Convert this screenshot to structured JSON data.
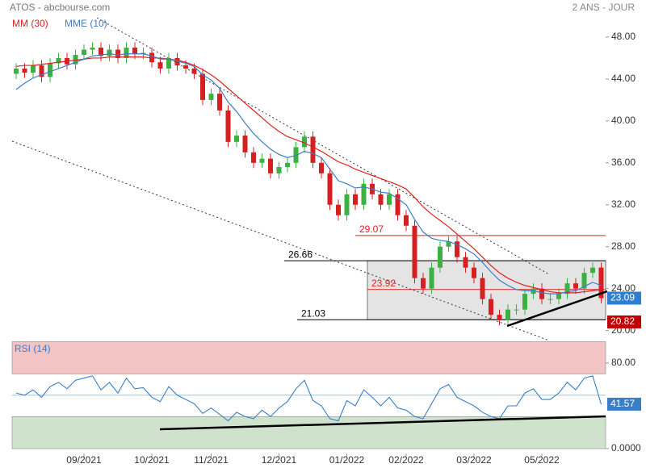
{
  "chart_data": [
    {
      "type": "candlestick",
      "title": "ATOS - abcbourse.com",
      "subtitle": "2 ANS - JOUR",
      "categories": [
        null,
        null,
        null,
        null,
        null,
        null,
        null,
        null,
        "09/2021",
        null,
        null,
        null,
        null,
        null,
        null,
        null,
        "10/2021",
        null,
        null,
        null,
        null,
        null,
        null,
        "11/2021",
        null,
        null,
        null,
        null,
        null,
        null,
        null,
        "12/2021",
        null,
        null,
        null,
        null,
        null,
        null,
        null,
        "01/2022",
        null,
        null,
        null,
        null,
        null,
        null,
        "02/2022",
        null,
        null,
        null,
        null,
        null,
        null,
        null,
        "03/2022",
        null,
        null,
        null,
        null,
        null,
        null,
        null,
        "05/2022",
        null,
        null,
        null,
        null,
        null,
        null,
        null
      ],
      "open": [
        44.5,
        45,
        44.6,
        45.3,
        44.2,
        45.5,
        46,
        45.4,
        46.3,
        46.8,
        47,
        46.2,
        46.8,
        46,
        47,
        46.4,
        46.5,
        45.6,
        45,
        46,
        45.3,
        45,
        44.5,
        42,
        42.6,
        41,
        38,
        38.6,
        37,
        36,
        36.4,
        35,
        35.6,
        36,
        37.5,
        38.5,
        36,
        35,
        32,
        31,
        33,
        32,
        34,
        33,
        32,
        33,
        31,
        30,
        25,
        24,
        26,
        28,
        28.5,
        27,
        26,
        25,
        23,
        21.5,
        21,
        22,
        22,
        23.5,
        24,
        23,
        23,
        23.5,
        24.5,
        24,
        25.5,
        26
      ],
      "high": [
        45.5,
        45.5,
        45.8,
        45.8,
        46,
        46.5,
        46.5,
        46.8,
        47.3,
        47.5,
        47.5,
        47.3,
        47.3,
        47.5,
        47.5,
        47,
        47,
        46.1,
        46.5,
        46.5,
        45.8,
        45.5,
        45,
        43.1,
        43.1,
        41.5,
        39.1,
        39.1,
        37.5,
        36.9,
        36.9,
        36.1,
        36.5,
        38,
        39,
        39,
        36.5,
        35.5,
        32.5,
        33.5,
        33.5,
        34.5,
        34.5,
        33.5,
        33.5,
        33.5,
        31.5,
        30.5,
        25.5,
        26.5,
        28.5,
        29,
        29,
        27.5,
        26.5,
        25.5,
        23.5,
        22,
        22.5,
        22.5,
        24,
        24.5,
        24.5,
        23.5,
        24,
        25,
        25,
        26,
        26.5,
        26.5
      ],
      "low": [
        44,
        44.1,
        44.1,
        43.7,
        43.7,
        45,
        44.9,
        44.9,
        45.8,
        46.3,
        45.7,
        45.7,
        45.5,
        45.5,
        45.9,
        45.9,
        45.1,
        44.5,
        44.5,
        44.8,
        44.5,
        44,
        41.5,
        41.5,
        40.5,
        37.5,
        37.5,
        36.5,
        35.5,
        35.5,
        34.5,
        34.5,
        35.1,
        35.5,
        37,
        35.5,
        34.5,
        31.5,
        30.5,
        30.5,
        31.5,
        31.5,
        32.5,
        31.5,
        31.5,
        30.5,
        29.5,
        24.5,
        23.5,
        23.5,
        25.5,
        27.5,
        26.5,
        25.5,
        24.5,
        22.5,
        21,
        20.5,
        20.5,
        21.5,
        21.5,
        23,
        22.5,
        22.5,
        22.5,
        23,
        23.5,
        23.5,
        25,
        22.59
      ],
      "close": [
        45,
        44.6,
        45.3,
        44.2,
        45.5,
        46,
        45.4,
        46.3,
        46.8,
        47,
        46.2,
        46.8,
        46,
        47,
        46.4,
        46.5,
        45.6,
        45,
        46,
        45.3,
        45,
        44.5,
        42,
        42.6,
        41,
        38,
        38.6,
        37,
        36,
        36.4,
        35,
        35.6,
        36,
        37.5,
        38.5,
        36,
        35,
        32,
        31,
        33,
        32,
        34,
        33,
        32,
        33,
        31,
        30,
        25,
        24,
        26,
        28,
        28.5,
        27,
        26,
        25,
        23,
        21.5,
        21,
        22,
        22,
        23.5,
        24,
        23,
        23,
        23.5,
        24.5,
        24,
        25.5,
        26,
        23.09
      ],
      "up_color": "#3cb043",
      "down_color": "#d42020",
      "series": [
        {
          "name": "MM (30)",
          "color": "#e02020",
          "values": [
            45.2,
            45.3,
            45.3,
            45.4,
            45.5,
            45.6,
            45.7,
            45.8,
            45.9,
            46,
            46,
            46.1,
            46.1,
            46.1,
            46.1,
            46.1,
            46,
            46,
            45.9,
            45.8,
            45.6,
            45.3,
            44.9,
            44.4,
            43.8,
            43.1,
            42.4,
            41.7,
            41,
            40.3,
            39.6,
            39,
            38.5,
            38.2,
            37.9,
            37.5,
            37.1,
            36.6,
            36.1,
            35.8,
            35.4,
            35.1,
            34.8,
            34.5,
            34.2,
            33.9,
            33.5,
            32.7,
            31.8,
            31.1,
            30.5,
            29.9,
            29.2,
            28.5,
            27.8,
            27,
            26.2,
            25.5,
            25,
            24.6,
            24.3,
            24.1,
            23.9,
            23.7,
            23.6,
            23.6,
            23.6,
            23.7,
            23.8,
            23.9
          ]
        },
        {
          "name": "MME (10)",
          "color": "#3a7ec8",
          "values": [
            43,
            43.6,
            44.1,
            44.4,
            44.7,
            45,
            45.3,
            45.6,
            45.9,
            46.2,
            46.3,
            46.4,
            46.3,
            46.4,
            46.4,
            46.4,
            46.2,
            45.9,
            45.9,
            45.7,
            45.5,
            45.2,
            44.4,
            43.9,
            43.1,
            41.8,
            40.9,
            39.8,
            38.8,
            38,
            37.3,
            36.8,
            36.5,
            36.7,
            37.1,
            36.9,
            36.5,
            35.4,
            34.3,
            34,
            33.6,
            33.7,
            33.5,
            33.2,
            33.1,
            32.6,
            32,
            30.6,
            29.4,
            28.8,
            28.6,
            28.5,
            28.2,
            27.8,
            27.3,
            26.5,
            25.6,
            24.8,
            24.3,
            23.9,
            23.8,
            23.8,
            23.6,
            23.5,
            23.5,
            23.7,
            23.8,
            24.2,
            24.6,
            24.3
          ]
        }
      ],
      "levels": [
        {
          "value": 26.66,
          "color": "#000000"
        },
        {
          "value": 29.07,
          "color": "#e02020"
        },
        {
          "value": 23.92,
          "color": "#e02020"
        },
        {
          "value": 21.03,
          "color": "#000000"
        }
      ],
      "last_labels": [
        {
          "value": 23.09,
          "color": "#2f7fd0"
        },
        {
          "value": 20.82,
          "color": "#c00000"
        }
      ],
      "ylim": [
        19.2,
        50
      ],
      "yticks": [
        {
          "value": 48,
          "label": "48.00"
        },
        {
          "value": 44,
          "label": "44.00"
        },
        {
          "value": 40,
          "label": "40.00"
        },
        {
          "value": 36,
          "label": "36.00"
        },
        {
          "value": 32,
          "label": "32.00"
        },
        {
          "value": 28,
          "label": "28.00"
        },
        {
          "value": 24,
          "label": "24.00"
        },
        {
          "value": 20,
          "label": "20.00"
        }
      ]
    },
    {
      "type": "line",
      "series": [
        {
          "name": "RSI (14)",
          "color": "#3a7ec8",
          "values": [
            52,
            50,
            55,
            48,
            58,
            62,
            56,
            64,
            66,
            68,
            55,
            62,
            52,
            66,
            56,
            57,
            48,
            44,
            58,
            50,
            46,
            42,
            33,
            38,
            32,
            26,
            34,
            30,
            28,
            36,
            30,
            38,
            44,
            56,
            64,
            45,
            40,
            28,
            26,
            45,
            40,
            55,
            48,
            40,
            48,
            38,
            36,
            30,
            28,
            42,
            56,
            60,
            48,
            44,
            40,
            34,
            30,
            28,
            40,
            40,
            52,
            56,
            46,
            46,
            52,
            62,
            55,
            66,
            68,
            41.57
          ],
          "value_labels": [
            null,
            null,
            null,
            null,
            null,
            null,
            null,
            null,
            null,
            null,
            null,
            null,
            null,
            null,
            null,
            null,
            null,
            null,
            null,
            null,
            null,
            null,
            null,
            null,
            null,
            null,
            null,
            null,
            null,
            null,
            null,
            null,
            null,
            null,
            null,
            null,
            null,
            null,
            null,
            null,
            null,
            null,
            null,
            null,
            null,
            null,
            null,
            null,
            null,
            null,
            null,
            null,
            null,
            null,
            null,
            null,
            null,
            null,
            null,
            null,
            null,
            null,
            null,
            null,
            null,
            null,
            null,
            null,
            null,
            "41.57"
          ]
        }
      ],
      "zones": [
        {
          "from": 70,
          "to": 100,
          "color": "#f2c4c4"
        },
        {
          "from": 0,
          "to": 30,
          "color": "#cfe3cc"
        }
      ],
      "midline": 50,
      "ylim": [
        0,
        100
      ],
      "yticks": [
        {
          "value": 80,
          "label": "80.00"
        },
        {
          "value": 0,
          "label": "0.0000"
        }
      ]
    }
  ]
}
